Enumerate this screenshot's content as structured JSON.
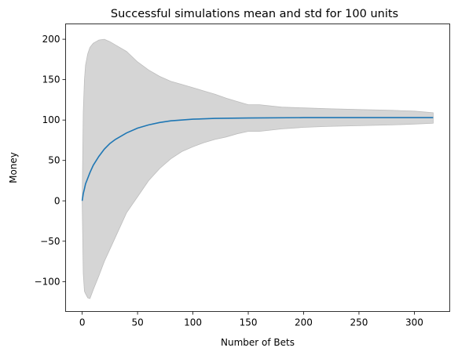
{
  "chart_data": {
    "type": "line",
    "title": "Successful simulations mean and std for 100 units",
    "xlabel": "Number of Bets",
    "ylabel": "Money",
    "xlim": [
      -15,
      332
    ],
    "ylim": [
      -137,
      219
    ],
    "xticks": [
      0,
      50,
      100,
      150,
      200,
      250,
      300
    ],
    "xtick_labels": [
      "0",
      "50",
      "100",
      "150",
      "200",
      "250",
      "300"
    ],
    "yticks": [
      -100,
      -50,
      0,
      50,
      100,
      150,
      200
    ],
    "ytick_labels": [
      "−100",
      "−50",
      "0",
      "50",
      "100",
      "150",
      "200"
    ],
    "grid": false,
    "colors": {
      "mean_line": "#1f77b4",
      "std_band": "#d5d5d5",
      "std_band_edge": "#bdbdbd"
    },
    "series": [
      {
        "role": "mean",
        "x": [
          0,
          1,
          2,
          3,
          5,
          7,
          10,
          15,
          20,
          25,
          30,
          40,
          50,
          60,
          70,
          80,
          100,
          120,
          150,
          200,
          250,
          317
        ],
        "values": [
          0,
          9,
          15,
          21,
          28,
          35,
          44,
          55,
          64,
          71,
          76,
          84,
          90,
          94,
          97,
          99,
          101,
          102,
          102.5,
          103,
          103,
          103
        ]
      },
      {
        "role": "mean + std",
        "x": [
          0,
          1,
          2,
          3,
          5,
          7,
          10,
          15,
          20,
          25,
          30,
          40,
          50,
          60,
          70,
          80,
          90,
          100,
          110,
          120,
          130,
          140,
          150,
          160,
          180,
          200,
          220,
          250,
          280,
          300,
          317
        ],
        "values": [
          0,
          110,
          150,
          168,
          182,
          190,
          195,
          199,
          200,
          197,
          193,
          185,
          172,
          162,
          154,
          148,
          144,
          140,
          136,
          132,
          127,
          123,
          119,
          119,
          116,
          115,
          114,
          113,
          112,
          111,
          109
        ]
      },
      {
        "role": "mean - std",
        "x": [
          0,
          1,
          2,
          3,
          5,
          7,
          10,
          15,
          20,
          25,
          30,
          40,
          50,
          60,
          70,
          80,
          90,
          100,
          110,
          120,
          130,
          140,
          150,
          160,
          180,
          200,
          220,
          250,
          280,
          300,
          317
        ],
        "values": [
          0,
          -90,
          -112,
          -115,
          -120,
          -121,
          -110,
          -93,
          -75,
          -60,
          -45,
          -15,
          5,
          25,
          40,
          52,
          61,
          67,
          72,
          76,
          79,
          83,
          86,
          86,
          89,
          91,
          92,
          93,
          94,
          95,
          96
        ]
      }
    ]
  }
}
